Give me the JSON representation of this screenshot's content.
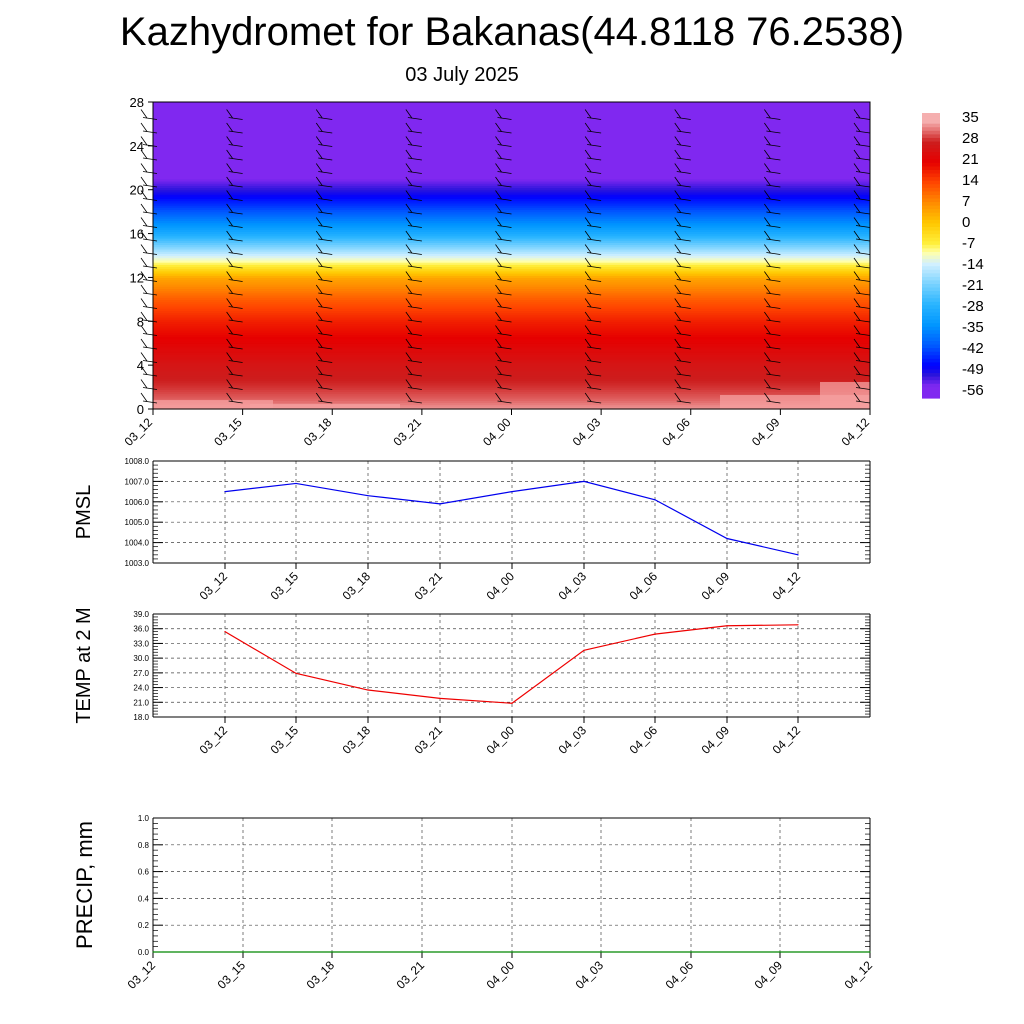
{
  "header": {
    "title": "Kazhydromet for Bakanas(44.8118 76.2538)",
    "date": "03 July 2025"
  },
  "time_labels": [
    "03_12",
    "03_15",
    "03_18",
    "03_21",
    "04_00",
    "04_03",
    "04_06",
    "04_09",
    "04_12"
  ],
  "chart_data": [
    {
      "type": "heatmap",
      "title": "",
      "xlabel": "",
      "ylabel": "",
      "x": [
        "03_12",
        "03_15",
        "03_18",
        "03_21",
        "04_00",
        "04_03",
        "04_06",
        "04_09",
        "04_12"
      ],
      "yticks": [
        0,
        4,
        8,
        12,
        16,
        20,
        24,
        28
      ],
      "ylim": [
        0,
        28
      ],
      "colorbar_labels": [
        "35",
        "28",
        "21",
        "14",
        "7",
        "0",
        "-7",
        "-14",
        "-21",
        "-28",
        "-35",
        "-42",
        "-49",
        "-56"
      ],
      "temperature_profile": {
        "height": [
          0,
          1,
          2,
          4,
          6,
          8,
          10,
          12,
          13.5,
          16,
          18,
          20,
          21,
          22.5,
          28
        ],
        "value": [
          34,
          31,
          29,
          26,
          22,
          18,
          12,
          4,
          -10,
          -30,
          -42,
          -52,
          -56,
          -58,
          -58
        ]
      },
      "wind_barbs": "present at each time"
    },
    {
      "type": "line",
      "ylabel": "PMSL",
      "x": [
        "03_12",
        "03_15",
        "03_18",
        "03_21",
        "04_00",
        "04_03",
        "04_06",
        "04_09",
        "04_12"
      ],
      "series": [
        {
          "name": "",
          "color": "#0000ee",
          "values": [
            1006.5,
            1006.9,
            1006.3,
            1005.9,
            1006.5,
            1007.0,
            1006.1,
            1004.2,
            1003.4
          ]
        }
      ],
      "yticks": [
        "1003.0",
        "1004.0",
        "1005.0",
        "1006.0",
        "1007.0",
        "1008.0"
      ],
      "ylim": [
        1003,
        1008
      ],
      "grid": true
    },
    {
      "type": "line",
      "ylabel": "TEMP at 2 M",
      "x": [
        "03_12",
        "03_15",
        "03_18",
        "03_21",
        "04_00",
        "04_03",
        "04_06",
        "04_09",
        "04_12"
      ],
      "series": [
        {
          "name": "",
          "color": "#ee0000",
          "values": [
            35.4,
            26.9,
            23.5,
            21.8,
            20.8,
            31.6,
            34.9,
            36.6,
            36.8
          ]
        }
      ],
      "yticks": [
        "18.0",
        "21.0",
        "24.0",
        "27.0",
        "30.0",
        "33.0",
        "36.0",
        "39.0"
      ],
      "ylim": [
        18,
        39
      ],
      "grid": true
    },
    {
      "type": "line",
      "ylabel": "PRECIP, mm",
      "x": [
        "03_12",
        "03_15",
        "03_18",
        "03_21",
        "04_00",
        "04_03",
        "04_06",
        "04_09",
        "04_12"
      ],
      "series": [
        {
          "name": "",
          "color": "#008800",
          "values": [
            0,
            0,
            0,
            0,
            0,
            0,
            0,
            0,
            0
          ]
        }
      ],
      "yticks": [
        "0.0",
        "0.2",
        "0.4",
        "0.6",
        "0.8",
        "1.0"
      ],
      "ylim": [
        0,
        1
      ],
      "grid": true
    }
  ]
}
